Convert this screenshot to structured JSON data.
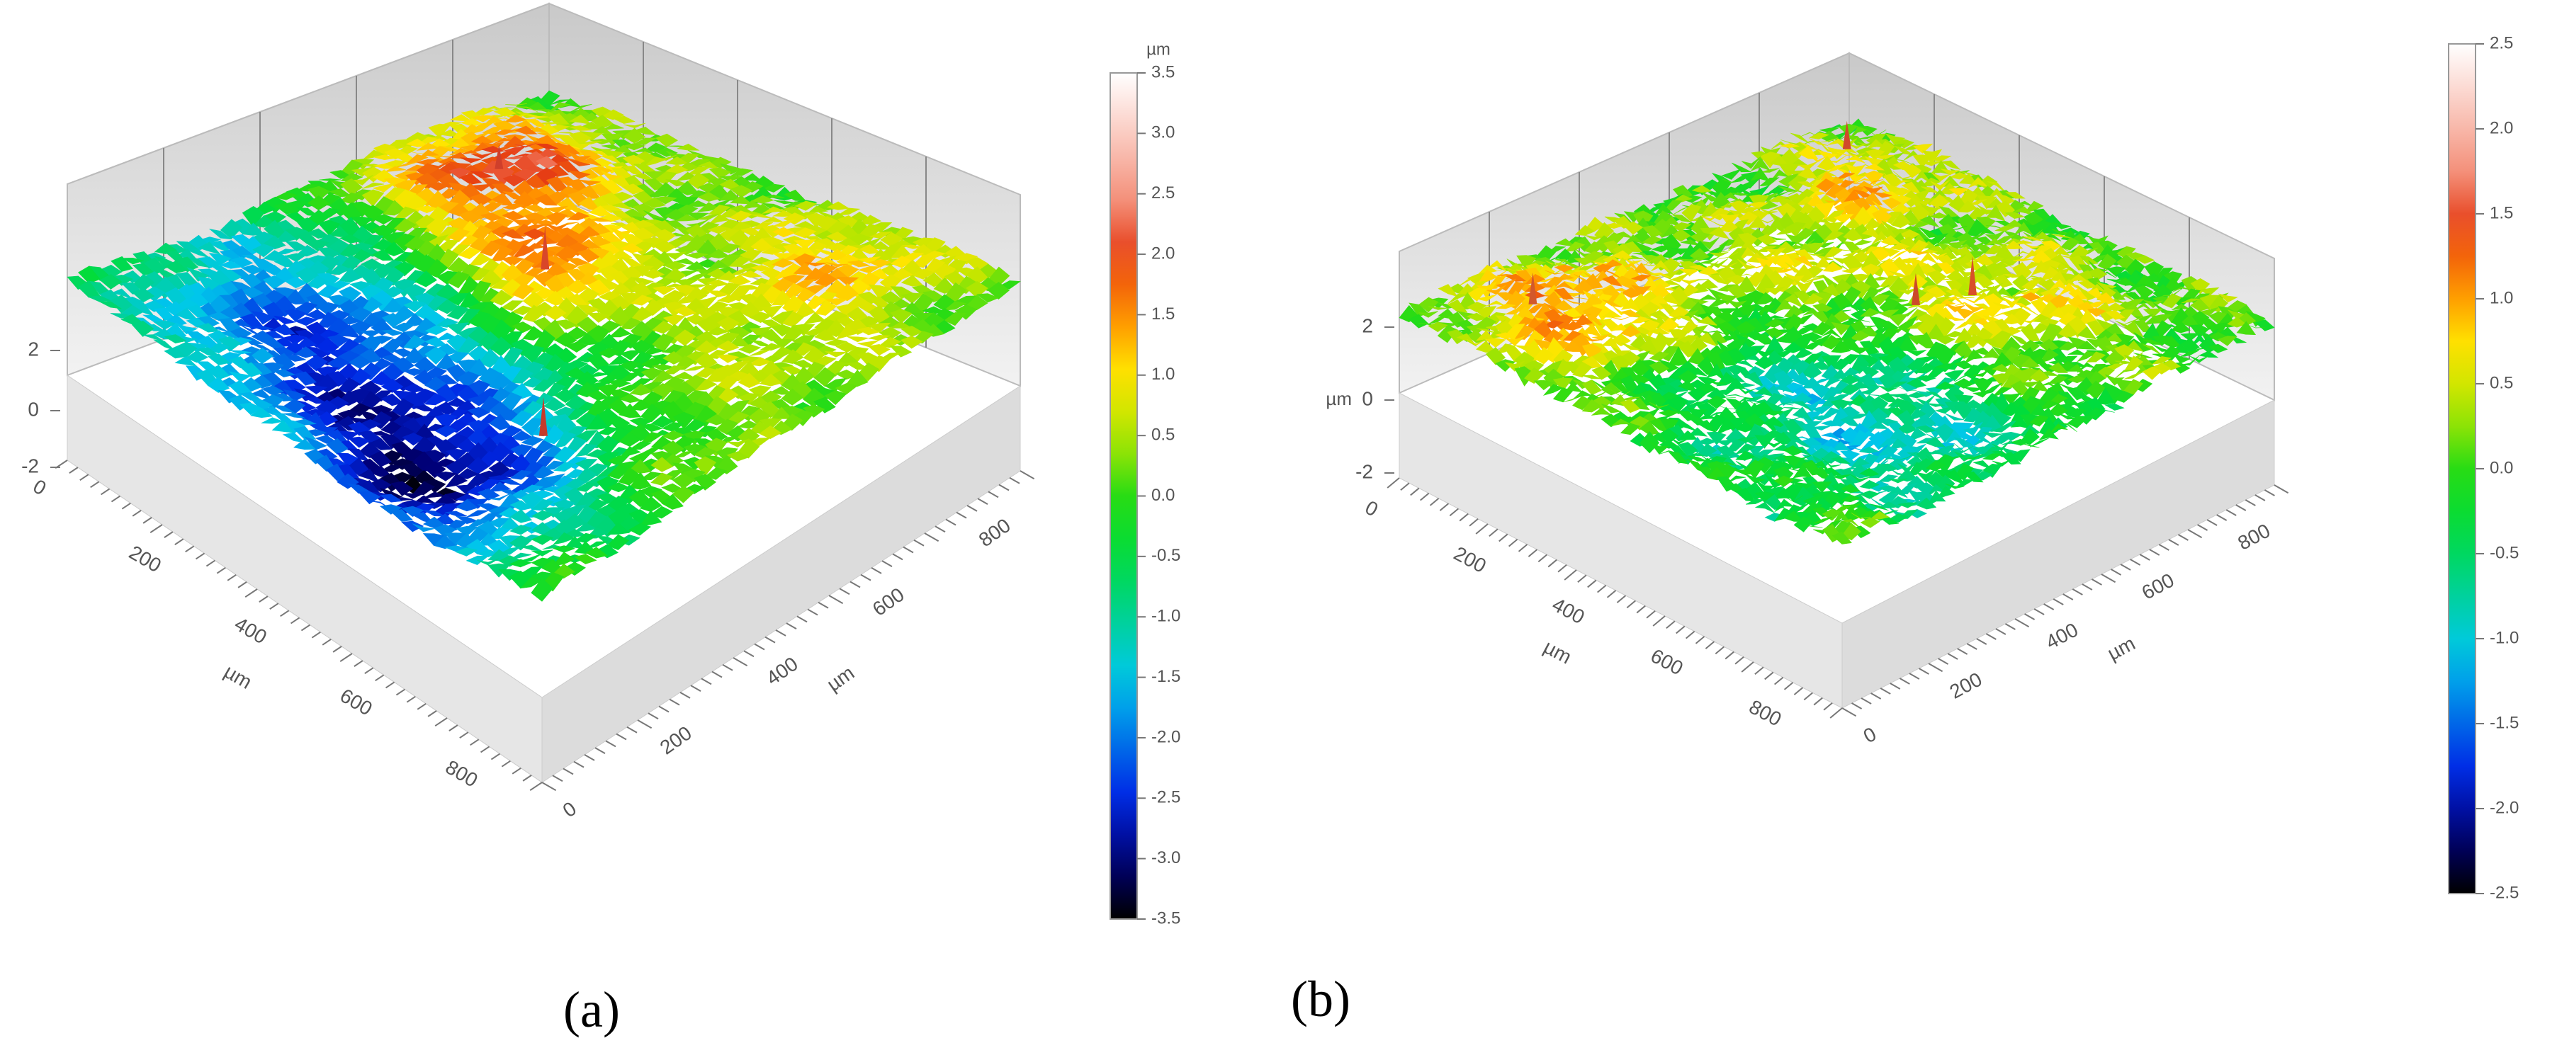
{
  "panels": [
    {
      "label": "(a)",
      "chart_data": {
        "type": "surface3d",
        "x_axis": {
          "label": "µm",
          "ticks": [
            "0",
            "200",
            "400",
            "600",
            "800"
          ],
          "range": [
            0,
            900
          ]
        },
        "y_axis": {
          "label": "µm",
          "ticks": [
            "0",
            "200",
            "400",
            "600",
            "800"
          ],
          "range": [
            0,
            900
          ]
        },
        "z_axis": {
          "ticks": [
            "2",
            "0",
            "-2"
          ],
          "range": [
            -3.5,
            3.5
          ]
        },
        "colorbar": {
          "unit": "µm",
          "ticks": [
            "3.5",
            "3.0",
            "2.5",
            "2.0",
            "1.5",
            "1.0",
            "0.5",
            "0.0",
            "-0.5",
            "-1.0",
            "-1.5",
            "-2.0",
            "-2.5",
            "-3.0",
            "-3.5"
          ],
          "range": [
            -3.5,
            3.5
          ]
        }
      }
    },
    {
      "label": "(b)",
      "chart_data": {
        "type": "surface3d",
        "x_axis": {
          "label": "µm",
          "ticks": [
            "0",
            "200",
            "400",
            "600",
            "800"
          ],
          "range": [
            0,
            900
          ]
        },
        "y_axis": {
          "label": "µm",
          "ticks": [
            "0",
            "200",
            "400",
            "600",
            "800"
          ],
          "range": [
            0,
            900
          ]
        },
        "z_axis": {
          "label": "µm",
          "ticks": [
            "2",
            "0",
            "-2"
          ],
          "range": [
            -2.5,
            2.5
          ]
        },
        "colorbar": {
          "unit": "",
          "ticks": [
            "2.5",
            "2.0",
            "1.5",
            "1.0",
            "0.5",
            "0.0",
            "-0.5",
            "-1.0",
            "-1.5",
            "-2.0",
            "-2.5"
          ],
          "range": [
            -2.5,
            2.5
          ]
        }
      }
    }
  ]
}
